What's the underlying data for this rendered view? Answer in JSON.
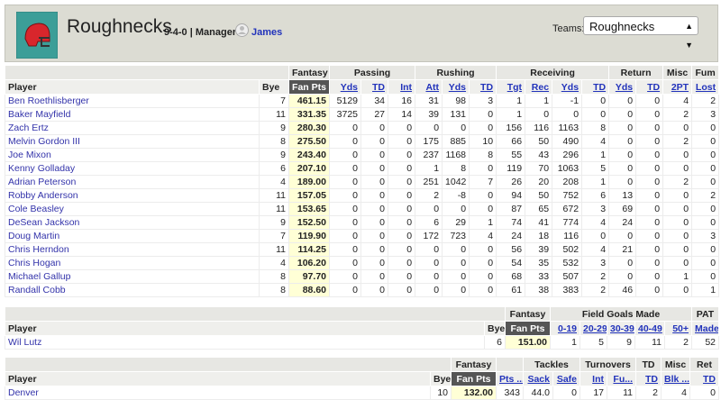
{
  "header": {
    "team_name": "Roughnecks",
    "record": "9-4-0 | Manager:",
    "manager": "James",
    "teams_label": "Teams:",
    "selected_team": "Roughnecks"
  },
  "tables": [
    {
      "player_header": "Player",
      "bye_header": "Bye",
      "groups": [
        {
          "label": "Fantasy",
          "columns": [
            "Fan Pts"
          ]
        },
        {
          "label": "Passing",
          "columns": [
            "Yds",
            "TD",
            "Int"
          ]
        },
        {
          "label": "Rushing",
          "columns": [
            "Att",
            "Yds",
            "TD"
          ]
        },
        {
          "label": "Receiving",
          "columns": [
            "Tgt",
            "Rec",
            "Yds",
            "TD"
          ]
        },
        {
          "label": "Return",
          "columns": [
            "Yds",
            "TD"
          ]
        },
        {
          "label": "Misc",
          "columns": [
            "2PT"
          ]
        },
        {
          "label": "Fum",
          "columns": [
            "Lost"
          ]
        }
      ],
      "rows": [
        {
          "player": "Ben Roethlisberger",
          "cells": [
            "7",
            "461.15",
            "5129",
            "34",
            "16",
            "31",
            "98",
            "3",
            "1",
            "1",
            "-1",
            "0",
            "0",
            "0",
            "4",
            "2"
          ]
        },
        {
          "player": "Baker Mayfield",
          "cells": [
            "11",
            "331.35",
            "3725",
            "27",
            "14",
            "39",
            "131",
            "0",
            "1",
            "0",
            "0",
            "0",
            "0",
            "0",
            "2",
            "3"
          ]
        },
        {
          "player": "Zach Ertz",
          "cells": [
            "9",
            "280.30",
            "0",
            "0",
            "0",
            "0",
            "0",
            "0",
            "156",
            "116",
            "1163",
            "8",
            "0",
            "0",
            "0",
            "0"
          ]
        },
        {
          "player": "Melvin Gordon III",
          "cells": [
            "8",
            "275.50",
            "0",
            "0",
            "0",
            "175",
            "885",
            "10",
            "66",
            "50",
            "490",
            "4",
            "0",
            "0",
            "2",
            "0"
          ]
        },
        {
          "player": "Joe Mixon",
          "cells": [
            "9",
            "243.40",
            "0",
            "0",
            "0",
            "237",
            "1168",
            "8",
            "55",
            "43",
            "296",
            "1",
            "0",
            "0",
            "0",
            "0"
          ]
        },
        {
          "player": "Kenny Golladay",
          "cells": [
            "6",
            "207.10",
            "0",
            "0",
            "0",
            "1",
            "8",
            "0",
            "119",
            "70",
            "1063",
            "5",
            "0",
            "0",
            "0",
            "0"
          ]
        },
        {
          "player": "Adrian Peterson",
          "cells": [
            "4",
            "189.00",
            "0",
            "0",
            "0",
            "251",
            "1042",
            "7",
            "26",
            "20",
            "208",
            "1",
            "0",
            "0",
            "2",
            "0"
          ]
        },
        {
          "player": "Robby Anderson",
          "cells": [
            "11",
            "157.05",
            "0",
            "0",
            "0",
            "2",
            "-8",
            "0",
            "94",
            "50",
            "752",
            "6",
            "13",
            "0",
            "0",
            "2"
          ]
        },
        {
          "player": "Cole Beasley",
          "cells": [
            "11",
            "153.65",
            "0",
            "0",
            "0",
            "0",
            "0",
            "0",
            "87",
            "65",
            "672",
            "3",
            "69",
            "0",
            "0",
            "0"
          ]
        },
        {
          "player": "DeSean Jackson",
          "cells": [
            "9",
            "152.50",
            "0",
            "0",
            "0",
            "6",
            "29",
            "1",
            "74",
            "41",
            "774",
            "4",
            "24",
            "0",
            "0",
            "0"
          ]
        },
        {
          "player": "Doug Martin",
          "cells": [
            "7",
            "119.90",
            "0",
            "0",
            "0",
            "172",
            "723",
            "4",
            "24",
            "18",
            "116",
            "0",
            "0",
            "0",
            "0",
            "3"
          ]
        },
        {
          "player": "Chris Herndon",
          "cells": [
            "11",
            "114.25",
            "0",
            "0",
            "0",
            "0",
            "0",
            "0",
            "56",
            "39",
            "502",
            "4",
            "21",
            "0",
            "0",
            "0"
          ]
        },
        {
          "player": "Chris Hogan",
          "cells": [
            "4",
            "106.20",
            "0",
            "0",
            "0",
            "0",
            "0",
            "0",
            "54",
            "35",
            "532",
            "3",
            "0",
            "0",
            "0",
            "0"
          ]
        },
        {
          "player": "Michael Gallup",
          "cells": [
            "8",
            "97.70",
            "0",
            "0",
            "0",
            "0",
            "0",
            "0",
            "68",
            "33",
            "507",
            "2",
            "0",
            "0",
            "1",
            "0"
          ]
        },
        {
          "player": "Randall Cobb",
          "cells": [
            "8",
            "88.60",
            "0",
            "0",
            "0",
            "0",
            "0",
            "0",
            "61",
            "38",
            "383",
            "2",
            "46",
            "0",
            "0",
            "1"
          ]
        }
      ]
    },
    {
      "player_header": "Player",
      "bye_header": "Bye",
      "groups": [
        {
          "label": "Fantasy",
          "columns": [
            "Fan Pts"
          ]
        },
        {
          "label": "Field Goals Made",
          "columns": [
            "0-19",
            "20-29",
            "30-39",
            "40-49",
            "50+"
          ]
        },
        {
          "label": "PAT",
          "columns": [
            "Made"
          ]
        }
      ],
      "rows": [
        {
          "player": "Wil Lutz",
          "cells": [
            "6",
            "151.00",
            "1",
            "5",
            "9",
            "11",
            "2",
            "52"
          ]
        }
      ]
    },
    {
      "player_header": "Player",
      "bye_header": "Bye",
      "groups": [
        {
          "label": "Fantasy",
          "columns": [
            "Fan Pts"
          ]
        },
        {
          "columns": [
            "Pts ..."
          ]
        },
        {
          "label": "Tackles",
          "columns": [
            "Sack",
            "Safe"
          ]
        },
        {
          "label": "Turnovers",
          "columns": [
            "Int",
            "Fu..."
          ]
        },
        {
          "label": "TD",
          "columns": [
            "TD"
          ]
        },
        {
          "label": "Misc",
          "columns": [
            "Blk ..."
          ]
        },
        {
          "label": "Ret",
          "columns": [
            "TD"
          ]
        }
      ],
      "rows": [
        {
          "player": "Denver",
          "cells": [
            "10",
            "132.00",
            "343",
            "44.0",
            "0",
            "17",
            "11",
            "2",
            "4",
            "0"
          ]
        }
      ]
    }
  ]
}
